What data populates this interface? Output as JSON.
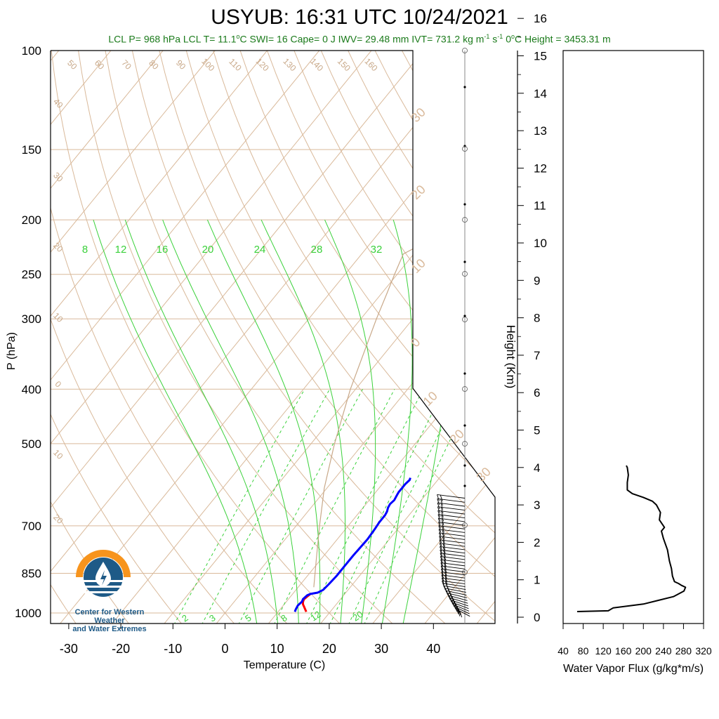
{
  "chart_data": [
    {
      "type": "line",
      "title": "USYUB: 16:31 UTC 10/24/2021",
      "subtitle": {
        "lcl_p": "LCL P= 968 hPa",
        "lcl_t": "LCL T= 11.1",
        "lcl_t_unit": "C",
        "swi": "SWI= 16",
        "cape": "Cape= 0 J",
        "iwv": "IWV= 29.48 mm",
        "ivt": "IVT= 731.2 kg m",
        "ivt_exp1": "-1",
        "ivt_s": " s",
        "ivt_exp2": "-1",
        "zero_height": "0",
        "zero_height_rest": "C Height = 3453.31 m"
      },
      "xlabel": "Temperature (C)",
      "ylabel": "P (hPa)",
      "xlim": [
        -35,
        45
      ],
      "ylim": [
        1050,
        100
      ],
      "y_log_scale": true,
      "x_ticks": [
        "-30",
        "-20",
        "-10",
        "0",
        "10",
        "20",
        "30",
        "40"
      ],
      "x_tick_values": [
        -30,
        -20,
        -10,
        0,
        10,
        20,
        30,
        40
      ],
      "y_ticks": [
        "100",
        "150",
        "200",
        "250",
        "300",
        "400",
        "500",
        "700",
        "850",
        "1000"
      ],
      "y_tick_values": [
        100,
        150,
        200,
        250,
        300,
        400,
        500,
        700,
        850,
        1000
      ],
      "dry_adiabat_labels": [
        "50",
        "60",
        "70",
        "80",
        "90",
        "100",
        "110",
        "120",
        "130",
        "140",
        "150",
        "160"
      ],
      "dry_adiabat_values": [
        50,
        60,
        70,
        80,
        90,
        100,
        110,
        120,
        130,
        140,
        150,
        160
      ],
      "isotherm_left_labels": [
        "40",
        "30",
        "20",
        "10",
        "0",
        "10",
        "20"
      ],
      "isotherm_right_labels": [
        "30",
        "20",
        "10",
        "0",
        "10",
        "20",
        "30"
      ],
      "moist_adiabat_labels": [
        "8",
        "12",
        "16",
        "20",
        "24",
        "28",
        "32"
      ],
      "moist_adiabat_values": [
        8,
        12,
        16,
        20,
        24,
        28,
        32
      ],
      "mixing_ratio_labels": [
        "2",
        "3",
        "5",
        "8",
        "12",
        "20"
      ],
      "mixing_ratio_values": [
        2,
        3,
        5,
        8,
        12,
        20
      ],
      "series": [
        {
          "name": "",
          "color": "#ff0000",
          "points": [
            [
              15.4,
              995
            ],
            [
              14.8,
              985
            ],
            [
              14.2,
              975
            ],
            [
              13.6,
              965
            ],
            [
              13.2,
              955
            ],
            [
              13.0,
              945
            ],
            [
              13.2,
              935
            ],
            [
              13.4,
              925
            ]
          ]
        },
        {
          "name": "",
          "color": "#0000ff",
          "points": [
            [
              13.2,
              995
            ],
            [
              13.0,
              985
            ],
            [
              12.8,
              970
            ],
            [
              13.0,
              955
            ],
            [
              12.8,
              945
            ],
            [
              13.0,
              930
            ],
            [
              13.4,
              925
            ],
            [
              14.6,
              920
            ],
            [
              15.2,
              910
            ],
            [
              15.4,
              890
            ],
            [
              15.6,
              860
            ],
            [
              15.6,
              830
            ],
            [
              15.6,
              790
            ],
            [
              15.8,
              740
            ],
            [
              15.6,
              710
            ],
            [
              15.4,
              690
            ],
            [
              15.4,
              670
            ],
            [
              15.2,
              660
            ],
            [
              14.8,
              650
            ],
            [
              14.6,
              640
            ],
            [
              14.8,
              630
            ],
            [
              14.6,
              620
            ],
            [
              14.4,
              610
            ],
            [
              14.4,
              600
            ],
            [
              14.4,
              590
            ],
            [
              14.6,
              580
            ],
            [
              14.4,
              575
            ]
          ]
        },
        {
          "name": "",
          "color": "#c8a888",
          "points": [
            [
              13.0,
              900
            ],
            [
              9.0,
              800
            ],
            [
              4.5,
              700
            ],
            [
              -0.5,
              600
            ],
            [
              -5.5,
              500
            ],
            [
              -11.0,
              400
            ],
            [
              -17.0,
              300
            ],
            [
              -19.0,
              270
            ],
            [
              -20.5,
              250
            ],
            [
              -22.0,
              230
            ],
            [
              -15.0,
              200
            ],
            [
              -3.0,
              150
            ],
            [
              6.0,
              120
            ],
            [
              12.5,
              100
            ]
          ]
        }
      ]
    },
    {
      "type": "line",
      "xlabel": "Water Vapor Flux (g/kg*m/s)",
      "ylabel": "Height (Km)",
      "xlim": [
        40,
        320
      ],
      "ylim": [
        -0.3,
        16.4
      ],
      "x_ticks": [
        "40",
        "80",
        "120",
        "160",
        "200",
        "240",
        "280",
        "320"
      ],
      "x_tick_values": [
        40,
        80,
        120,
        160,
        200,
        240,
        280,
        320
      ],
      "y_ticks": [
        "0",
        "1",
        "2",
        "3",
        "4",
        "5",
        "6",
        "7",
        "8",
        "9",
        "10",
        "11",
        "12",
        "13",
        "14",
        "15",
        "16"
      ],
      "y_tick_values": [
        0,
        1,
        2,
        3,
        4,
        5,
        6,
        7,
        8,
        9,
        10,
        11,
        12,
        13,
        14,
        15,
        16
      ],
      "series": [
        {
          "name": "",
          "color": "#000000",
          "points": [
            [
              68,
              0.15
            ],
            [
              95,
              0.16
            ],
            [
              130,
              0.17
            ],
            [
              140,
              0.25
            ],
            [
              170,
              0.3
            ],
            [
              200,
              0.35
            ],
            [
              230,
              0.45
            ],
            [
              260,
              0.55
            ],
            [
              281,
              0.7
            ],
            [
              284,
              0.8
            ],
            [
              276,
              0.85
            ],
            [
              270,
              0.9
            ],
            [
              262,
              0.95
            ],
            [
              258,
              1.1
            ],
            [
              256,
              1.3
            ],
            [
              252,
              1.5
            ],
            [
              248,
              1.8
            ],
            [
              240,
              2.1
            ],
            [
              236,
              2.3
            ],
            [
              242,
              2.4
            ],
            [
              232,
              2.6
            ],
            [
              234,
              2.8
            ],
            [
              226,
              3.0
            ],
            [
              218,
              3.1
            ],
            [
              200,
              3.2
            ],
            [
              178,
              3.3
            ],
            [
              168,
              3.4
            ],
            [
              168,
              3.6
            ],
            [
              170,
              3.8
            ],
            [
              168,
              4.0
            ],
            [
              166,
              4.05
            ]
          ]
        }
      ]
    }
  ],
  "logo_text": "Center for Western Weather and Water Extremes",
  "logo_text_line1": "Center for Western Weather",
  "logo_text_line2": "and Water Extremes",
  "colors": {
    "temperature": "#ff0000",
    "dewpoint": "#0000ff",
    "parcel": "#c8a888",
    "background_lines": "#d9b99a",
    "moist_adiabats": "#3ad13a",
    "subtitle": "#1a7a1a",
    "logo_orange": "#f7941d",
    "logo_blue": "#1e5a87"
  }
}
